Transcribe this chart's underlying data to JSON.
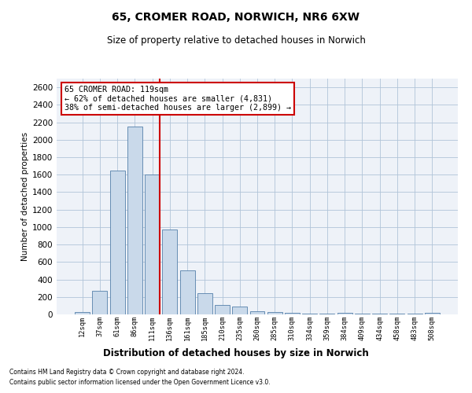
{
  "title_line1": "65, CROMER ROAD, NORWICH, NR6 6XW",
  "title_line2": "Size of property relative to detached houses in Norwich",
  "xlabel": "Distribution of detached houses by size in Norwich",
  "ylabel": "Number of detached properties",
  "annotation_title": "65 CROMER ROAD: 119sqm",
  "annotation_line2": "← 62% of detached houses are smaller (4,831)",
  "annotation_line3": "38% of semi-detached houses are larger (2,899) →",
  "footer_line1": "Contains HM Land Registry data © Crown copyright and database right 2024.",
  "footer_line2": "Contains public sector information licensed under the Open Government Licence v3.0.",
  "bar_color": "#c9d9ea",
  "bar_edge_color": "#5580aa",
  "vline_color": "#cc0000",
  "annotation_box_color": "#cc0000",
  "grid_color": "#b0c4d8",
  "background_color": "#eef2f8",
  "categories": [
    "12sqm",
    "37sqm",
    "61sqm",
    "86sqm",
    "111sqm",
    "136sqm",
    "161sqm",
    "185sqm",
    "210sqm",
    "235sqm",
    "260sqm",
    "285sqm",
    "310sqm",
    "334sqm",
    "359sqm",
    "384sqm",
    "409sqm",
    "434sqm",
    "458sqm",
    "483sqm",
    "508sqm"
  ],
  "values": [
    25,
    270,
    1650,
    2150,
    1600,
    970,
    500,
    245,
    110,
    90,
    40,
    30,
    20,
    10,
    10,
    15,
    10,
    5,
    10,
    5,
    20
  ],
  "ylim": [
    0,
    2700
  ],
  "yticks": [
    0,
    200,
    400,
    600,
    800,
    1000,
    1200,
    1400,
    1600,
    1800,
    2000,
    2200,
    2400,
    2600
  ]
}
